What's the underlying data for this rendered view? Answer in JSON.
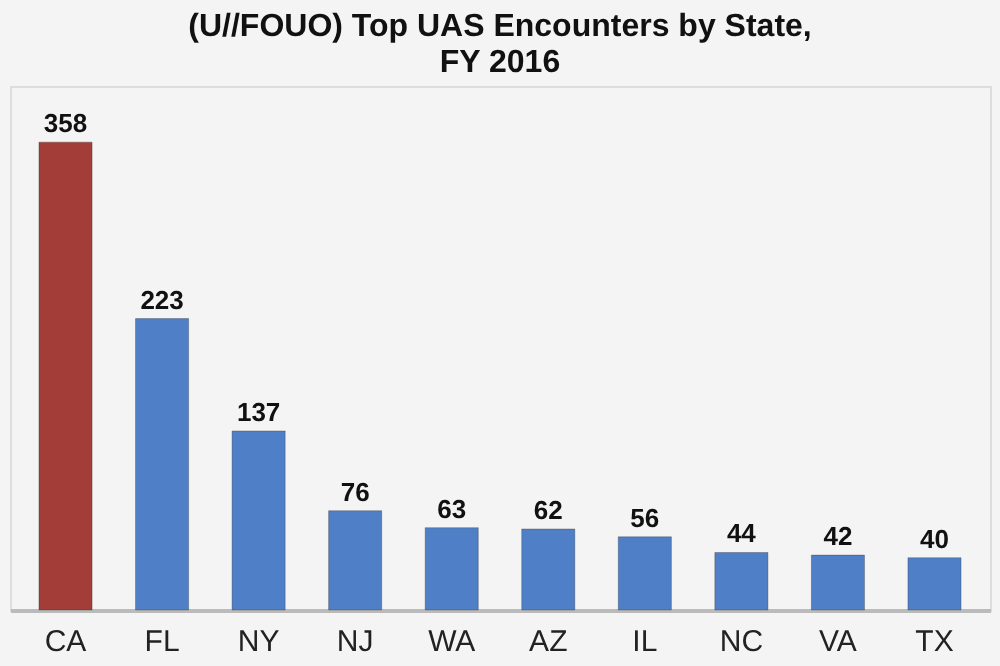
{
  "chart_data": {
    "type": "bar",
    "title": "(U//FOUO) Top UAS Encounters by State, FY 2016",
    "categories": [
      "CA",
      "FL",
      "NY",
      "NJ",
      "WA",
      "AZ",
      "IL",
      "NC",
      "VA",
      "TX"
    ],
    "values": [
      358,
      223,
      137,
      76,
      63,
      62,
      56,
      44,
      42,
      40
    ],
    "colors": [
      "#a33d38",
      "#4f7fc6",
      "#4f7fc6",
      "#4f7fc6",
      "#4f7fc6",
      "#4f7fc6",
      "#4f7fc6",
      "#4f7fc6",
      "#4f7fc6",
      "#4f7fc6"
    ],
    "data_labels": true
  }
}
